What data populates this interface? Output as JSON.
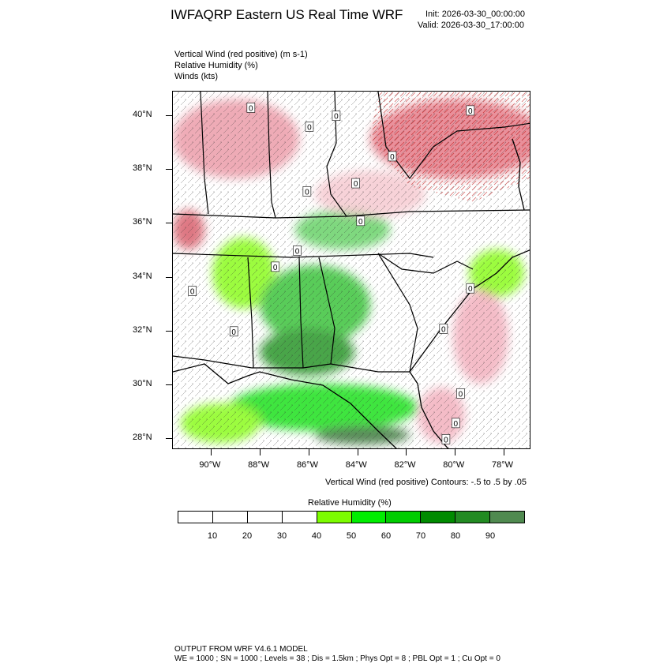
{
  "header": {
    "title": "IWFAQRP Eastern US Real Time WRF",
    "init": "Init: 2026-03-30_00:00:00",
    "valid": "Valid: 2026-03-30_17:00:00"
  },
  "fields": [
    "Vertical Wind (red positive)   (m s-1)",
    "Relative Humidity   (%)",
    "Winds   (kts)"
  ],
  "map": {
    "lat_labels": [
      "40°N",
      "38°N",
      "36°N",
      "34°N",
      "32°N",
      "30°N",
      "28°N"
    ],
    "lon_labels": [
      "90°W",
      "88°W",
      "86°W",
      "84°W",
      "82°W",
      "80°W",
      "78°W"
    ],
    "lat_values": [
      40,
      38,
      36,
      34,
      32,
      30,
      28
    ],
    "lon_values": [
      -90,
      -88,
      -86,
      -84,
      -82,
      -80,
      -78
    ],
    "lat_range": [
      27.6,
      40.9
    ],
    "lon_range": [
      -91.6,
      -76.9
    ],
    "contour_zero_label": "0",
    "contour_zero_locations": [
      {
        "lon": -88.4,
        "lat": 40.3
      },
      {
        "lon": -86.0,
        "lat": 39.6
      },
      {
        "lon": -84.9,
        "lat": 40.0
      },
      {
        "lon": -86.1,
        "lat": 37.2
      },
      {
        "lon": -84.1,
        "lat": 37.5
      },
      {
        "lon": -83.9,
        "lat": 36.1
      },
      {
        "lon": -86.5,
        "lat": 35.0
      },
      {
        "lon": -87.4,
        "lat": 34.4
      },
      {
        "lon": -90.8,
        "lat": 33.5
      },
      {
        "lon": -89.1,
        "lat": 32.0
      },
      {
        "lon": -80.5,
        "lat": 32.1
      },
      {
        "lon": -79.4,
        "lat": 33.6
      },
      {
        "lon": -79.8,
        "lat": 29.7
      },
      {
        "lon": -80.4,
        "lat": 28.0
      },
      {
        "lon": -80.0,
        "lat": 28.6
      },
      {
        "lon": -82.6,
        "lat": 38.5
      },
      {
        "lon": -79.4,
        "lat": 40.2
      }
    ]
  },
  "contour_note": "Vertical Wind (red positive) Contours: -.5 to .5 by .05",
  "colorbar": {
    "title": "Relative Humidity  (%)",
    "colors": [
      "#ffffff",
      "#ffffff",
      "#ffffff",
      "#ffffff",
      "#7cfc00",
      "#00ee00",
      "#00cd00",
      "#008b00",
      "#228b22",
      "#508a50"
    ],
    "labels": [
      "10",
      "20",
      "30",
      "40",
      "50",
      "60",
      "70",
      "80",
      "90"
    ]
  },
  "footer": {
    "line1": "OUTPUT FROM WRF V4.6.1 MODEL",
    "line2": "WE = 1000 ; SN = 1000 ; Levels = 38 ; Dis = 1.5km ; Phys Opt = 8 ; PBL Opt = 1 ; Cu Opt = 0"
  }
}
